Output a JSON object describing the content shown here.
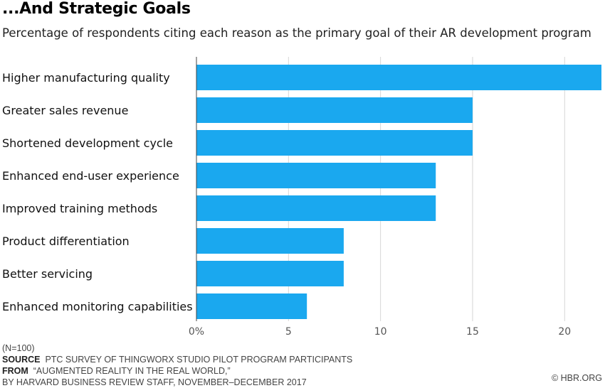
{
  "chart_data": {
    "type": "bar",
    "orientation": "horizontal",
    "title": "...And Strategic Goals",
    "subtitle": "Percentage of respondents citing each reason as the primary goal of their AR development program",
    "categories": [
      "Higher manufacturing quality",
      "Greater sales revenue",
      "Shortened development cycle",
      "Enhanced end-user experience",
      "Improved training methods",
      "Product differentiation",
      "Better servicing",
      "Enhanced monitoring capabilities"
    ],
    "values": [
      22,
      15,
      15,
      13,
      13,
      8,
      8,
      6
    ],
    "xlim": [
      0,
      22
    ],
    "ticks": [
      0,
      5,
      10,
      15,
      20
    ],
    "tick_labels": [
      "0%",
      "5",
      "10",
      "15",
      "20"
    ],
    "grid": true,
    "bar_color": "#1aa8ef"
  },
  "footer": {
    "note": "(N=100)",
    "source_label": "SOURCE",
    "source_text": "PTC SURVEY OF THINGWORX STUDIO PILOT PROGRAM PARTICIPANTS",
    "from_label": "FROM",
    "from_text": "“AUGMENTED REALITY IN THE REAL WORLD,”",
    "byline": "BY HARVARD BUSINESS REVIEW STAFF, NOVEMBER–DECEMBER 2017",
    "copyright": "© HBR.ORG"
  }
}
